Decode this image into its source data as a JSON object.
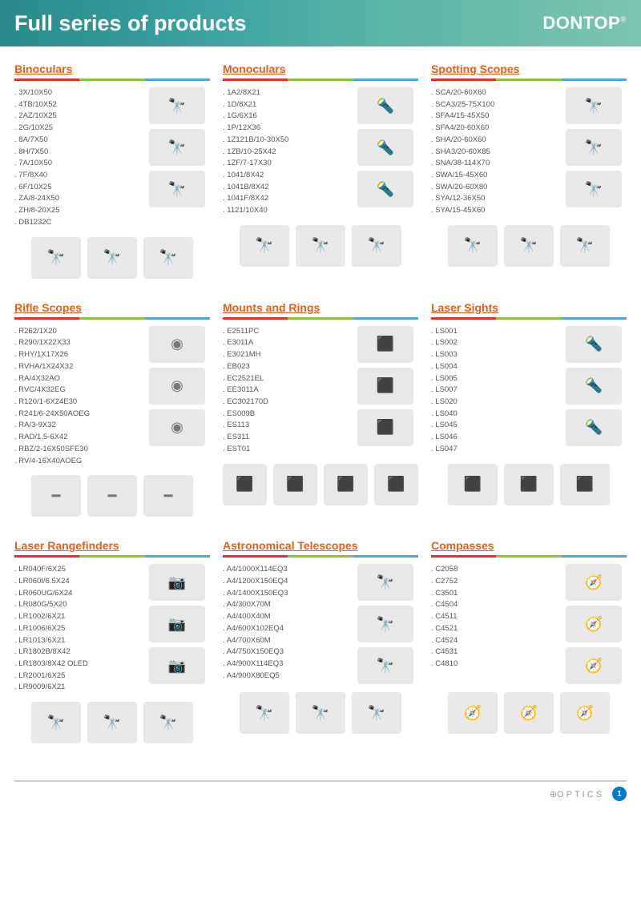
{
  "header": {
    "title": "Full series of products",
    "brand": "DONTOP",
    "brand_reg": "®"
  },
  "footer": {
    "text": "OPTICS",
    "page": "1"
  },
  "bar_colors": {
    "left": "#e03030",
    "mid": "#8bc53f",
    "right": "#4aa8e0"
  },
  "title_color": "#e85d1a",
  "categories": [
    [
      {
        "title": "Binoculars",
        "items": [
          "3X/10X50",
          "4TB/10X52",
          "2AZ/10X25",
          "2G/10X25",
          "8A/7X50",
          "8H/7X50",
          "7A/10X50",
          "7F/8X40",
          "6F/10X25",
          "ZA/8-24X50",
          "ZH/8-20X25",
          "DB1232C"
        ],
        "side_icons": [
          "🔭",
          "🔭",
          "🔭"
        ],
        "bottom_icons": [
          "🔭",
          "🔭",
          "🔭"
        ]
      },
      {
        "title": "Monoculars",
        "items": [
          "1A2/8X21",
          "1D/8X21",
          "1G/6X16",
          "1P/12X36",
          "1Z121B/10-30X50",
          "1ZB/10-25X42",
          "1ZF/7-17X30",
          "1041/8X42",
          "1041B/8X42",
          "1041F/8X42",
          "1121/10X40"
        ],
        "side_icons": [
          "🔦",
          "🔦",
          "🔦"
        ],
        "bottom_icons": [
          "🔭",
          "🔭",
          "🔭"
        ]
      },
      {
        "title": "Spotting Scopes",
        "items": [
          "SCA/20-60X60",
          "SCA3/25-75X100",
          "SFA4/15-45X50",
          "SFA4/20-60X60",
          "SHA/20-60X60",
          "SHA3/20-60X85",
          "SNA/38-114X70",
          "SWA/15-45X60",
          "SWA/20-60X80",
          "SYA/12-36X50",
          "SYA/15-45X60"
        ],
        "side_icons": [
          "🔭",
          "🔭",
          "🔭"
        ],
        "bottom_icons": [
          "🔭",
          "🔭",
          "🔭"
        ]
      }
    ],
    [
      {
        "title": "Rifle Scopes",
        "items": [
          "R262/1X20",
          "R290/1X22X33",
          "RHY/1X17X26",
          "RVHA/1X24X32",
          "RA/4X32AO",
          "RVC/4X32EG",
          "R120/1-6X24E30",
          "R241/6-24X50AOEG",
          "RA/3-9X32",
          "RAD/1.5-6X42",
          "RBZ/2-16X50SFE30",
          "RV/4-16X40AOEG"
        ],
        "side_icons": [
          "◉",
          "◉",
          "◉"
        ],
        "bottom_icons": [
          "━",
          "━",
          "━"
        ]
      },
      {
        "title": "Mounts and Rings",
        "items": [
          "E2511PC",
          "E3011A",
          "E3021MH",
          "EB023",
          "EC2521EL",
          "EE3011A",
          "EC302170D",
          "ES009B",
          "ES113",
          "ES311",
          "EST01"
        ],
        "side_icons": [
          "⬛",
          "⬛",
          "⬛"
        ],
        "bottom_icons": [
          "⬛",
          "⬛",
          "⬛",
          "⬛"
        ]
      },
      {
        "title": "Laser Sights",
        "items": [
          "LS001",
          "LS002",
          "LS003",
          "LS004",
          "LS005",
          "LS007",
          "LS020",
          "LS040",
          "LS045",
          "LS046",
          "LS047"
        ],
        "side_icons": [
          "🔦",
          "🔦",
          "🔦"
        ],
        "bottom_icons": [
          "⬛",
          "⬛",
          "⬛"
        ]
      }
    ],
    [
      {
        "title": "Laser Rangefinders",
        "items": [
          "LR040F/6X25",
          "LR060I/6.5X24",
          "LR060UG/6X24",
          "LR080G/5X20",
          "LR1002/6X21",
          "LR1006/6X25",
          "LR1013/6X21",
          "LR1802B/8X42",
          "LR1803/8X42 OLED",
          "LR2001/6X25",
          "LR9009/6X21"
        ],
        "side_icons": [
          "📷",
          "📷",
          "📷"
        ],
        "bottom_icons": [
          "🔭",
          "🔭",
          "🔭"
        ]
      },
      {
        "title": "Astronomical Telescopes",
        "items": [
          "A4/1000X114EQ3",
          "A4/1200X150EQ4",
          "A4/1400X150EQ3",
          "A4/300X70M",
          "A4/400X40M",
          "A4/600X102EQ4",
          "A4/700X60M",
          "A4/750X150EQ3",
          "A4/900X114EQ3",
          "A4/900X80EQ5"
        ],
        "side_icons": [
          "🔭",
          "🔭",
          "🔭"
        ],
        "bottom_icons": [
          "🔭",
          "🔭",
          "🔭"
        ]
      },
      {
        "title": "Compasses",
        "items": [
          "C2058",
          "C2752",
          "C3501",
          "C4504",
          "C4511",
          "C4521",
          "C4524",
          "C4531",
          "C4810"
        ],
        "side_icons": [
          "🧭",
          "🧭",
          "🧭"
        ],
        "bottom_icons": [
          "🧭",
          "🧭",
          "🧭"
        ]
      }
    ]
  ]
}
